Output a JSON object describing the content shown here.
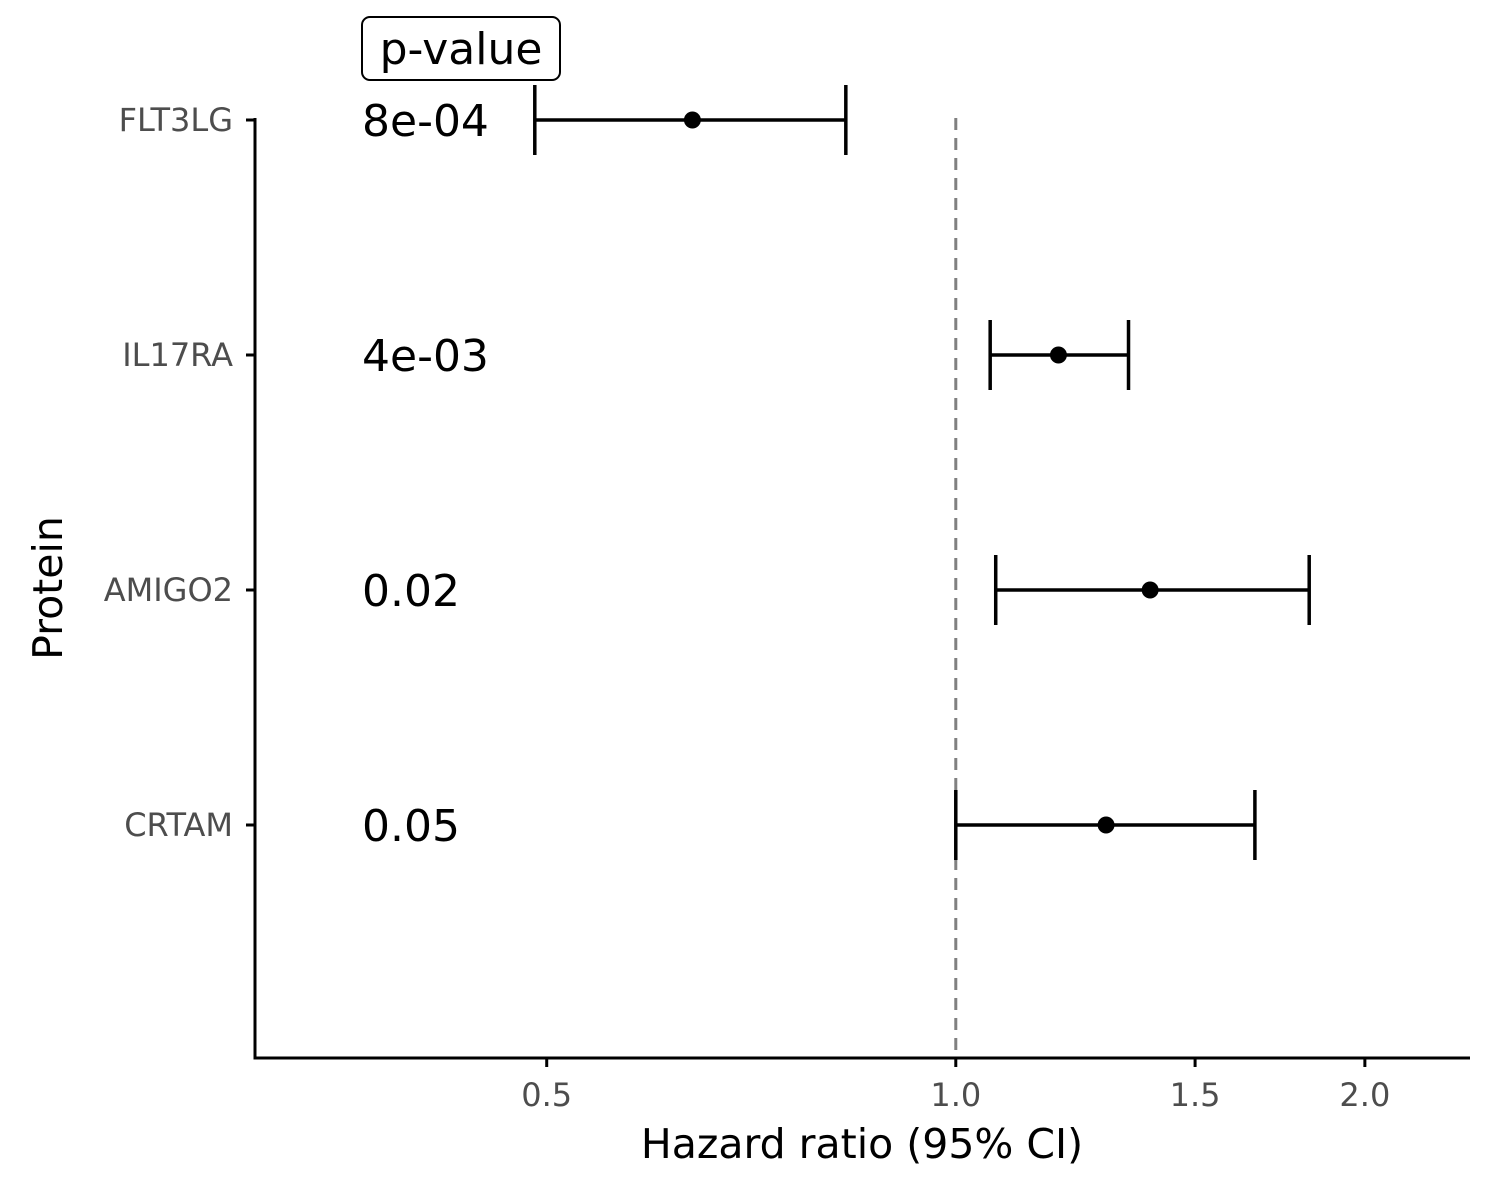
{
  "chart_data": {
    "type": "forest",
    "xlabel": "Hazard ratio (95% CI)",
    "ylabel": "Protein",
    "x_scale": "log",
    "xlim": [
      0.305,
      2.39
    ],
    "xticks": [
      {
        "value": 0.5,
        "label": "0.5"
      },
      {
        "value": 1.0,
        "label": "1.0"
      },
      {
        "value": 1.5,
        "label": "1.5"
      },
      {
        "value": 2.0,
        "label": "2.0"
      }
    ],
    "reference_line": 1.0,
    "pvalue_header": "p-value",
    "rows": [
      {
        "protein": "FLT3LG",
        "hr": 0.64,
        "lower": 0.49,
        "upper": 0.83,
        "pvalue": "8e-04"
      },
      {
        "protein": "IL17RA",
        "hr": 1.19,
        "lower": 1.06,
        "upper": 1.34,
        "pvalue": "4e-03"
      },
      {
        "protein": "AMIGO2",
        "hr": 1.39,
        "lower": 1.07,
        "upper": 1.82,
        "pvalue": "0.02"
      },
      {
        "protein": "CRTAM",
        "hr": 1.29,
        "lower": 1.0,
        "upper": 1.66,
        "pvalue": "0.05"
      }
    ],
    "grid": false,
    "colors": {
      "point": "#000000",
      "reference": "#808080",
      "axis": "#000000",
      "tick_label": "#4d4d4d"
    }
  }
}
